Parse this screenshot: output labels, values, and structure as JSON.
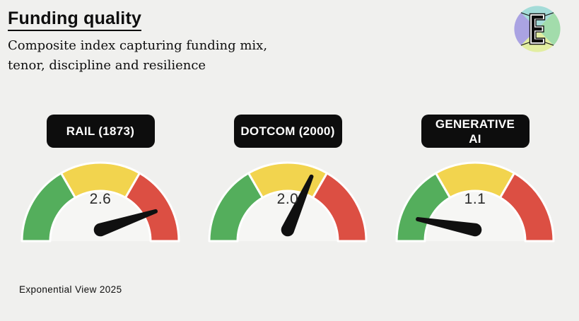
{
  "page": {
    "background_color": "#f0f0ee",
    "title": "Funding quality",
    "subtitle_lines": [
      "Composite index capturing funding mix,",
      "tenor, discipline and resilience"
    ],
    "footer": "Exponential View 2025"
  },
  "logo": {
    "description": "Exponential View circular logo with beveled letter E",
    "quadrant_colors": {
      "top": "#a4dcd8",
      "left": "#aaa3e2",
      "right": "#a2dcab",
      "bottom": "#e2eea1"
    }
  },
  "colors": {
    "text": "#0e0e0e",
    "pill-bg": "#0d0d0d",
    "pill-text": "#ffffff",
    "needle": "#101010",
    "value-text": "#2b2b2b",
    "dial-face": "#f6f6f4",
    "arc-outline": "#ffffff"
  },
  "chart_data": {
    "type": "gauge",
    "title": "Funding quality",
    "subtitle": "Composite index capturing funding mix, tenor, discipline and resilience",
    "source_note": "Exponential View 2025",
    "legend": "none",
    "grid": false,
    "gauge_shape": "semicircular dial with three equal 60-degree color bands and black tapered needle",
    "segments": [
      {
        "name": "green",
        "color": "#54ae5c",
        "start_deg": 180,
        "end_deg": 120
      },
      {
        "name": "yellow",
        "color": "#f2d44e",
        "start_deg": 120,
        "end_deg": 60
      },
      {
        "name": "red",
        "color": "#dc4f43",
        "start_deg": 60,
        "end_deg": 0
      }
    ],
    "needle_angle_convention": "degrees counterclockwise from the 3 o'clock direction",
    "gauges": [
      {
        "label": "RAIL (1873)",
        "value": 2.6,
        "display_value": "2.6",
        "needle_angle_deg": 18.5
      },
      {
        "label": "DOTCOM (2000)",
        "value": 2.0,
        "display_value": "2.0",
        "needle_angle_deg": 66
      },
      {
        "label": "GENERATIVE\nAI",
        "value": 1.1,
        "display_value": "1.1",
        "needle_angle_deg": 169.5
      }
    ]
  }
}
